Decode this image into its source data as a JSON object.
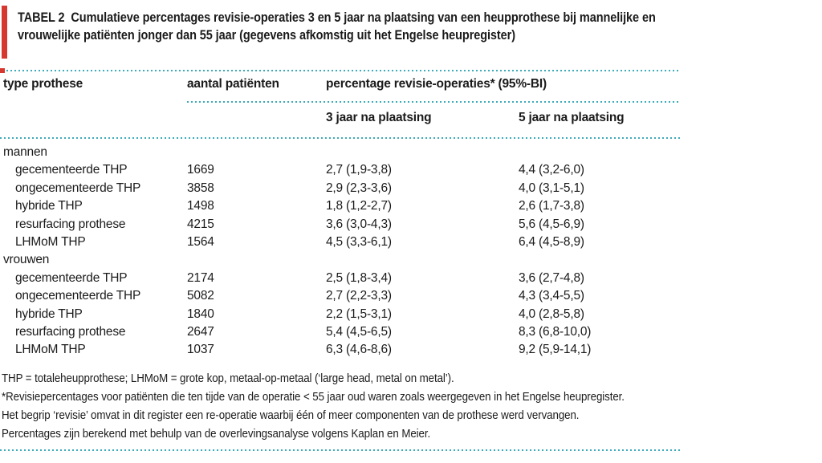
{
  "colors": {
    "rule_teal": "#3bacb9",
    "accent_red": "#d6382f",
    "text": "#1b1b1b"
  },
  "title": {
    "label": "TABEL 2",
    "text": "Cumulatieve percentages revisie-operaties 3 en 5 jaar na plaatsing van een heupprothese bij mannelijke en vrouwelijke patiënten jonger dan 55 jaar (gegevens afkomstig uit het Engelse heupregister)"
  },
  "table": {
    "headers": {
      "col1": "type prothese",
      "col2": "aantal patiënten",
      "col3": "percentage revisie-operaties* (95%-BI)"
    },
    "subheaders": {
      "col3": "3 jaar na plaatsing",
      "col4": "5 jaar na plaatsing"
    },
    "rows": [
      {
        "kind": "section",
        "label": "mannen"
      },
      {
        "kind": "data",
        "label": "gecementeerde THP",
        "patients": "1669",
        "y3": "2,7 (1,9-3,8)",
        "y5": "4,4 (3,2-6,0)"
      },
      {
        "kind": "data",
        "label": "ongecementeerde THP",
        "patients": "3858",
        "y3": "2,9 (2,3-3,6)",
        "y5": "4,0 (3,1-5,1)"
      },
      {
        "kind": "data",
        "label": "hybride THP",
        "patients": "1498",
        "y3": "1,8 (1,2-2,7)",
        "y5": "2,6 (1,7-3,8)"
      },
      {
        "kind": "data",
        "label": "resurfacing prothese",
        "patients": "4215",
        "y3": "3,6 (3,0-4,3)",
        "y5": "5,6 (4,5-6,9)"
      },
      {
        "kind": "data",
        "label": "LHMoM THP",
        "patients": "1564",
        "y3": "4,5 (3,3-6,1)",
        "y5": "6,4 (4,5-8,9)"
      },
      {
        "kind": "section",
        "label": "vrouwen"
      },
      {
        "kind": "data",
        "label": "gecementeerde THP",
        "patients": "2174",
        "y3": "2,5 (1,8-3,4)",
        "y5": "3,6 (2,7-4,8)"
      },
      {
        "kind": "data",
        "label": "ongecementeerde THP",
        "patients": "5082",
        "y3": "2,7 (2,2-3,3)",
        "y5": "4,3 (3,4-5,5)"
      },
      {
        "kind": "data",
        "label": "hybride THP",
        "patients": "1840",
        "y3": "2,2 (1,5-3,1)",
        "y5": "4,0 (2,8-5,8)"
      },
      {
        "kind": "data",
        "label": "resurfacing prothese",
        "patients": "2647",
        "y3": "5,4 (4,5-6,5)",
        "y5": "8,3 (6,8-10,0)"
      },
      {
        "kind": "data",
        "label": "LHMoM THP",
        "patients": "1037",
        "y3": "6,3 (4,6-8,6)",
        "y5": "9,2 (5,9-14,1)"
      }
    ]
  },
  "footnotes": [
    "THP = totaleheupprothese; LHMoM = grote kop, metaal-op-metaal (‘large head, metal on metal’).",
    "*Revisiepercentages voor patiënten die ten tijde van de operatie < 55 jaar oud waren zoals weergegeven in het Engelse heupregister.",
    "Het begrip ‘revisie’ omvat in dit register een re-operatie waarbij één of meer componenten van de prothese werd vervangen.",
    "Percentages zijn berekend met behulp van de overlevingsanalyse volgens Kaplan en Meier."
  ]
}
